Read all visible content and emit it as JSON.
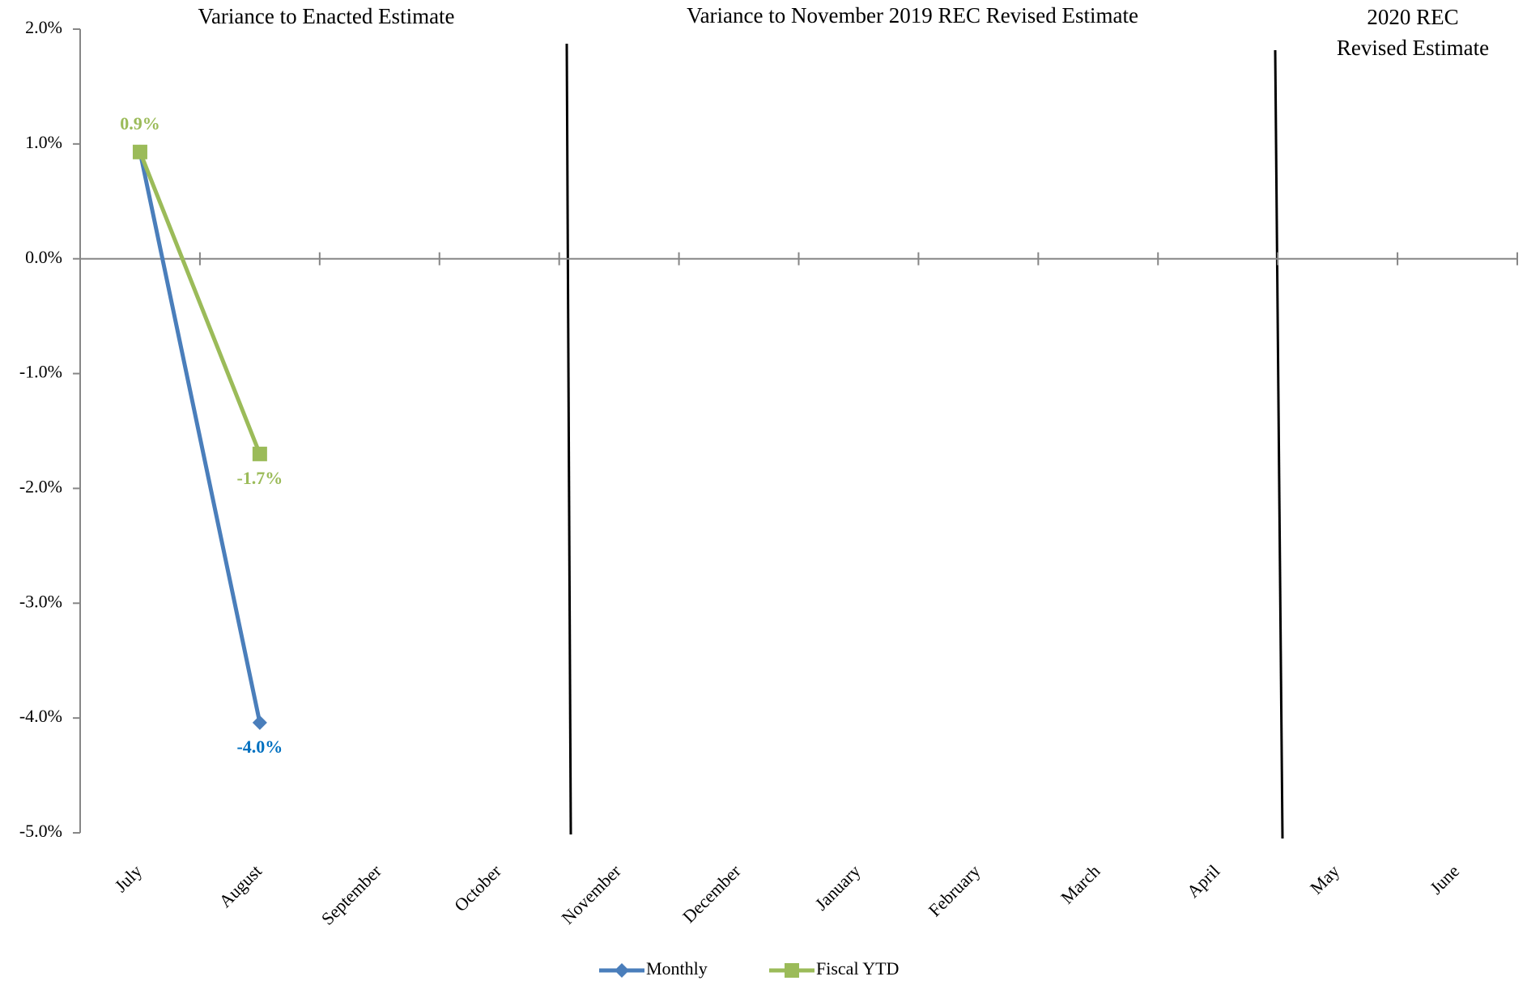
{
  "chart_data": {
    "type": "line",
    "annotations": [
      "Variance to Enacted Estimate",
      "Variance to November 2019 REC Revised Estimate",
      [
        "2020 REC",
        "Revised Estimate"
      ]
    ],
    "categories": [
      "July",
      "August",
      "September",
      "October",
      "November",
      "December",
      "January",
      "February",
      "March",
      "April",
      "May",
      "June"
    ],
    "series": [
      {
        "name": "Monthly",
        "color": "#4a7ebb",
        "label_color": "#0070c0",
        "marker": "diamond",
        "values": [
          0.93,
          -4.04,
          null,
          null,
          null,
          null,
          null,
          null,
          null,
          null,
          null,
          null
        ],
        "value_labels": [
          null,
          "-4.0%",
          null,
          null,
          null,
          null,
          null,
          null,
          null,
          null,
          null,
          null
        ]
      },
      {
        "name": "Fiscal YTD",
        "color": "#9bbb59",
        "label_color": "#9bbb59",
        "marker": "square",
        "values": [
          0.93,
          -1.7,
          null,
          null,
          null,
          null,
          null,
          null,
          null,
          null,
          null,
          null
        ],
        "value_labels": [
          "0.9%",
          "-1.7%",
          null,
          null,
          null,
          null,
          null,
          null,
          null,
          null,
          null,
          null
        ]
      }
    ],
    "ylim": [
      -5,
      2
    ],
    "yticks": [
      {
        "value": -5,
        "label": "-5.0%"
      },
      {
        "value": -4,
        "label": "-4.0%"
      },
      {
        "value": -3,
        "label": "-3.0%"
      },
      {
        "value": -2,
        "label": "-2.0%"
      },
      {
        "value": -1,
        "label": "-1.0%"
      },
      {
        "value": 0,
        "label": "0.0%"
      },
      {
        "value": 1,
        "label": "1.0%"
      },
      {
        "value": 2,
        "label": "2.0%"
      }
    ],
    "grid": false,
    "legend": "bottom"
  }
}
